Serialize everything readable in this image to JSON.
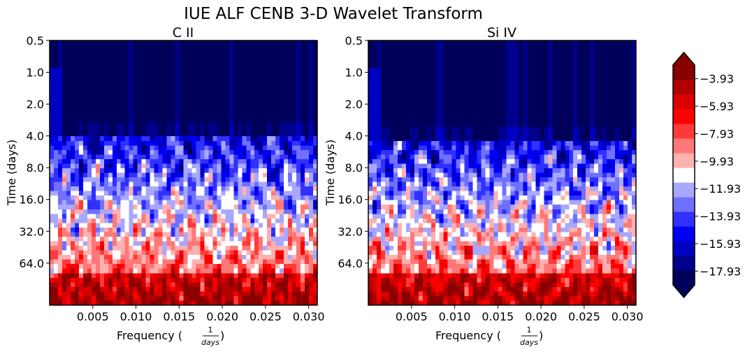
{
  "title": "IUE ALF CENB 3-D Wavelet Transform",
  "palette": [
    "#00005a",
    "#00008c",
    "#0000c2",
    "#0000f2",
    "#3030ff",
    "#7070ff",
    "#a8a8ff",
    "#ffffff",
    "#ffb0b0",
    "#ff7878",
    "#ff3a3a",
    "#ff0000",
    "#d80000",
    "#b00000",
    "#880000"
  ],
  "chart_data": [
    {
      "type": "heatmap",
      "title": "C II",
      "xlabel_main": "Frequency (",
      "xlabel_num": "1",
      "xlabel_den": "days",
      "xlabel_close": ")",
      "ylabel": "Time (days)",
      "x_ticks": [
        {
          "value": 0.005,
          "label": "0.005"
        },
        {
          "value": 0.01,
          "label": "0.010"
        },
        {
          "value": 0.015,
          "label": "0.015"
        },
        {
          "value": 0.02,
          "label": "0.020"
        },
        {
          "value": 0.025,
          "label": "0.025"
        },
        {
          "value": 0.03,
          "label": "0.030"
        }
      ],
      "y_ticks": [
        {
          "value": 0.5,
          "label": "0.5"
        },
        {
          "value": 1,
          "label": "1.0"
        },
        {
          "value": 2,
          "label": "2.0"
        },
        {
          "value": 4,
          "label": "4.0"
        },
        {
          "value": 8,
          "label": "8.0"
        },
        {
          "value": 16,
          "label": "16.0"
        },
        {
          "value": 32,
          "label": "32.0"
        },
        {
          "value": 64,
          "label": "64.0"
        }
      ],
      "xlim": [
        0,
        0.031
      ],
      "ylim": [
        0.5,
        160
      ],
      "y_scale": "log2 (time increasing downward)",
      "floor_upper_days": 4.2,
      "seed": 11
    },
    {
      "type": "heatmap",
      "title": "Si IV",
      "xlabel_main": "Frequency (",
      "xlabel_num": "1",
      "xlabel_den": "days",
      "xlabel_close": ")",
      "ylabel": "Time (days)",
      "x_ticks": [
        {
          "value": 0.005,
          "label": "0.005"
        },
        {
          "value": 0.01,
          "label": "0.010"
        },
        {
          "value": 0.015,
          "label": "0.015"
        },
        {
          "value": 0.02,
          "label": "0.020"
        },
        {
          "value": 0.025,
          "label": "0.025"
        },
        {
          "value": 0.03,
          "label": "0.030"
        }
      ],
      "y_ticks": [
        {
          "value": 0.5,
          "label": "0.5"
        },
        {
          "value": 1,
          "label": "1.0"
        },
        {
          "value": 2,
          "label": "2.0"
        },
        {
          "value": 4,
          "label": "4.0"
        },
        {
          "value": 8,
          "label": "8.0"
        },
        {
          "value": 16,
          "label": "16.0"
        },
        {
          "value": 32,
          "label": "32.0"
        },
        {
          "value": 64,
          "label": "64.0"
        }
      ],
      "xlim": [
        0,
        0.031
      ],
      "ylim": [
        0.5,
        160
      ],
      "y_scale": "log2 (time increasing downward)",
      "floor_upper_days": 4.5,
      "seed": 29
    }
  ],
  "colorbar": {
    "min": -18.93,
    "max": -2.93,
    "ticks": [
      {
        "value": -3.93,
        "label": "−3.93"
      },
      {
        "value": -5.93,
        "label": "−5.93"
      },
      {
        "value": -7.93,
        "label": "−7.93"
      },
      {
        "value": -9.93,
        "label": "−9.93"
      },
      {
        "value": -11.93,
        "label": "−11.93"
      },
      {
        "value": -13.93,
        "label": "−13.93"
      },
      {
        "value": -15.93,
        "label": "−15.93"
      },
      {
        "value": -17.93,
        "label": "−17.93"
      }
    ],
    "extend": "both"
  }
}
